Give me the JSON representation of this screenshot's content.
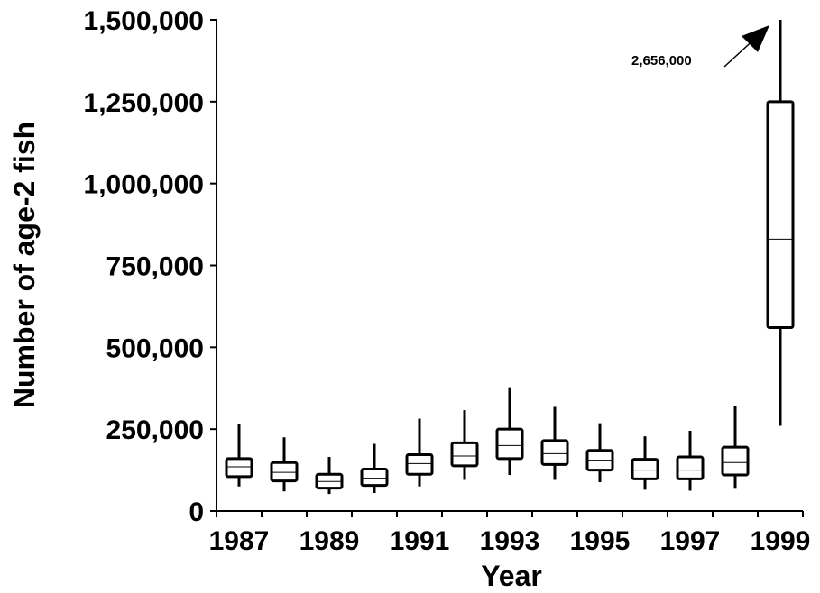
{
  "chart_data": {
    "type": "box",
    "title": "",
    "xlabel": "Year",
    "ylabel": "Number of age-2 fish",
    "ylim": [
      0,
      1500000
    ],
    "yticks": [
      0,
      250000,
      500000,
      750000,
      1000000,
      1250000,
      1500000
    ],
    "ytick_labels": [
      "0",
      "250,000",
      "500,000",
      "750,000",
      "1,000,000",
      "1,250,000",
      "1,500,000"
    ],
    "xlim": [
      1986.5,
      1999.5
    ],
    "xtick_labels": [
      "1987",
      "1989",
      "1991",
      "1993",
      "1995",
      "1997",
      "1999"
    ],
    "grid": false,
    "series": [
      {
        "x": 1987,
        "min": 75000,
        "q1": 105000,
        "median": 135000,
        "q3": 160000,
        "max": 265000
      },
      {
        "x": 1988,
        "min": 60000,
        "q1": 92000,
        "median": 118000,
        "q3": 148000,
        "max": 225000
      },
      {
        "x": 1989,
        "min": 52000,
        "q1": 70000,
        "median": 90000,
        "q3": 112000,
        "max": 165000
      },
      {
        "x": 1990,
        "min": 55000,
        "q1": 78000,
        "median": 100000,
        "q3": 128000,
        "max": 205000
      },
      {
        "x": 1991,
        "min": 75000,
        "q1": 112000,
        "median": 145000,
        "q3": 172000,
        "max": 282000
      },
      {
        "x": 1992,
        "min": 95000,
        "q1": 138000,
        "median": 168000,
        "q3": 208000,
        "max": 308000
      },
      {
        "x": 1993,
        "min": 110000,
        "q1": 160000,
        "median": 200000,
        "q3": 250000,
        "max": 378000
      },
      {
        "x": 1994,
        "min": 95000,
        "q1": 142000,
        "median": 175000,
        "q3": 215000,
        "max": 318000
      },
      {
        "x": 1995,
        "min": 88000,
        "q1": 125000,
        "median": 155000,
        "q3": 185000,
        "max": 268000
      },
      {
        "x": 1996,
        "min": 65000,
        "q1": 98000,
        "median": 125000,
        "q3": 158000,
        "max": 228000
      },
      {
        "x": 1997,
        "min": 62000,
        "q1": 98000,
        "median": 125000,
        "q3": 165000,
        "max": 245000
      },
      {
        "x": 1998,
        "min": 68000,
        "q1": 110000,
        "median": 148000,
        "q3": 195000,
        "max": 320000
      },
      {
        "x": 1999,
        "min": 260000,
        "q1": 560000,
        "median": 830000,
        "q3": 1250000,
        "max": 2656000
      }
    ],
    "annotations": [
      {
        "text": "2,656,000",
        "points_to": 1999
      }
    ]
  }
}
